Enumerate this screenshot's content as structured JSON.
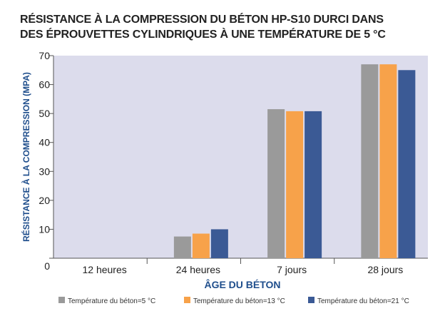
{
  "title_lines": [
    "RÉSISTANCE À LA COMPRESSION DU BÉTON HP-S10 DURCI DANS",
    "DES ÉPROUVETTES CYLINDRIQUES À UNE TEMPÉRATURE DE 5 °C"
  ],
  "colors": {
    "plot_bg": "#dcdcec",
    "axis_label": "#1f4e8c",
    "series": [
      "#9a9a9a",
      "#f7a24a",
      "#3b5a95"
    ]
  },
  "chart_data": {
    "type": "bar",
    "title": "RÉSISTANCE À LA COMPRESSION DU BÉTON HP-S10 DURCI DANS DES ÉPROUVETTES CYLINDRIQUES À UNE TEMPÉRATURE DE 5 °C",
    "xlabel": "ÂGE DU BÉTON",
    "ylabel": "RÉSISTANCE À LA COMPRESSION (MPA)",
    "ylim": [
      0,
      70
    ],
    "yticks": [
      0,
      10,
      20,
      30,
      40,
      50,
      60,
      70
    ],
    "categories": [
      "12 heures",
      "24 heures",
      "7 jours",
      "28 jours"
    ],
    "series": [
      {
        "name": "Température du béton=5 °C",
        "values": [
          0,
          7.5,
          51.5,
          67
        ]
      },
      {
        "name": "Température du béton=13 °C",
        "values": [
          0,
          8.5,
          50.8,
          67
        ]
      },
      {
        "name": "Température du béton=21 °C",
        "values": [
          0,
          10,
          50.8,
          65
        ]
      }
    ],
    "grid": false,
    "legend_position": "bottom"
  }
}
